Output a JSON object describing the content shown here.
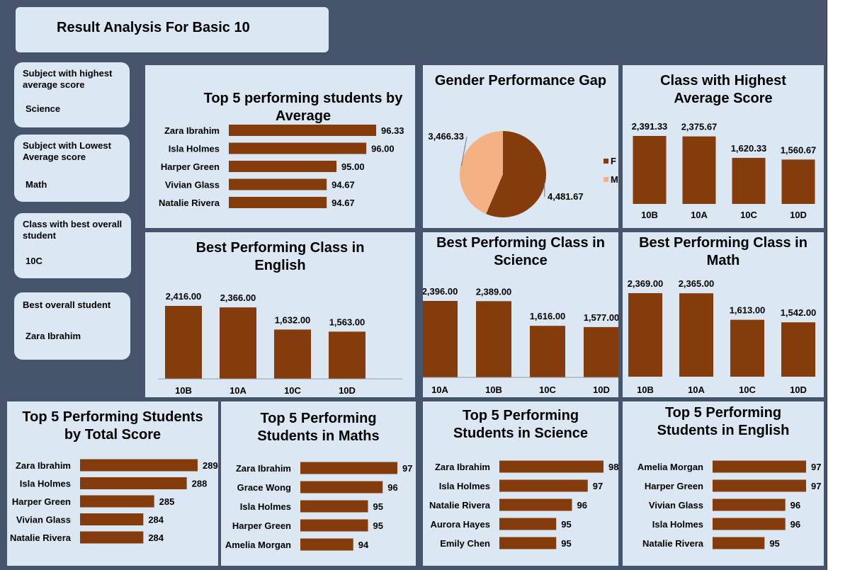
{
  "title": "Result Analysis For Basic 10",
  "colors": {
    "bar": "#843c0c",
    "pie_f": "#843c0c",
    "pie_m": "#f4b183",
    "panel": "#dbe7f3",
    "background": "#46556b"
  },
  "kpis": [
    {
      "label": "Subject with highest average score",
      "value": "Science"
    },
    {
      "label": "Subject with Lowest Average score",
      "value": "Math"
    },
    {
      "label": "Class with best overall student",
      "value": "10C"
    },
    {
      "label": "Best overall student",
      "value": "Zara Ibrahim"
    }
  ],
  "chart_data": [
    {
      "id": "top5_average",
      "type": "bar",
      "orientation": "horizontal",
      "title": "Top 5 performing students by Average",
      "categories": [
        "Zara Ibrahim",
        "Isla Holmes",
        "Harper Green",
        "Vivian Glass",
        "Natalie Rivera"
      ],
      "values": [
        96.33,
        96.0,
        95.0,
        94.67,
        94.67
      ],
      "labels": [
        "96.33",
        "96.00",
        "95.00",
        "94.67",
        "94.67"
      ]
    },
    {
      "id": "gender_gap",
      "type": "pie",
      "title": "Gender Performance Gap",
      "categories": [
        "F",
        "M"
      ],
      "values": [
        4481.67,
        3466.33
      ],
      "labels": [
        "4,481.67",
        "3,466.33"
      ]
    },
    {
      "id": "class_avg",
      "type": "bar",
      "orientation": "vertical",
      "title": "Class with Highest Average Score",
      "categories": [
        "10B",
        "10A",
        "10C",
        "10D"
      ],
      "values": [
        2391.33,
        2375.67,
        1620.33,
        1560.67
      ],
      "labels": [
        "2,391.33",
        "2,375.67",
        "1,620.33",
        "1,560.67"
      ]
    },
    {
      "id": "class_english",
      "type": "bar",
      "orientation": "vertical",
      "title": "Best Performing Class in English",
      "categories": [
        "10B",
        "10A",
        "10C",
        "10D"
      ],
      "values": [
        2416.0,
        2366.0,
        1632.0,
        1563.0
      ],
      "labels": [
        "2,416.00",
        "2,366.00",
        "1,632.00",
        "1,563.00"
      ]
    },
    {
      "id": "class_science",
      "type": "bar",
      "orientation": "vertical",
      "title": "Best Performing Class in Science",
      "categories": [
        "10A",
        "10B",
        "10C",
        "10D"
      ],
      "values": [
        2396.0,
        2389.0,
        1616.0,
        1577.0
      ],
      "labels": [
        "2,396.00",
        "2,389.00",
        "1,616.00",
        "1,577.00"
      ]
    },
    {
      "id": "class_math",
      "type": "bar",
      "orientation": "vertical",
      "title": "Best Performing Class in Math",
      "categories": [
        "10B",
        "10A",
        "10C",
        "10D"
      ],
      "values": [
        2369.0,
        2365.0,
        1613.0,
        1542.0
      ],
      "labels": [
        "2,369.00",
        "2,365.00",
        "1,613.00",
        "1,542.00"
      ]
    },
    {
      "id": "top5_total",
      "type": "bar",
      "orientation": "horizontal",
      "title": "Top 5 Performing Students by Total Score",
      "categories": [
        "Zara Ibrahim",
        "Isla Holmes",
        "Harper Green",
        "Vivian Glass",
        "Natalie Rivera"
      ],
      "values": [
        289,
        288,
        285,
        284,
        284
      ],
      "labels": [
        "289",
        "288",
        "285",
        "284",
        "284"
      ]
    },
    {
      "id": "top5_maths",
      "type": "bar",
      "orientation": "horizontal",
      "title": "Top 5 Performing Students in Maths",
      "categories": [
        "Zara Ibrahim",
        "Grace Wong",
        "Isla Holmes",
        "Harper Green",
        "Amelia Morgan"
      ],
      "values": [
        97,
        96,
        95,
        95,
        94
      ],
      "labels": [
        "97",
        "96",
        "95",
        "95",
        "94"
      ]
    },
    {
      "id": "top5_science",
      "type": "bar",
      "orientation": "horizontal",
      "title": "Top 5 Performing Students in Science",
      "categories": [
        "Zara Ibrahim",
        "Isla Holmes",
        "Natalie Rivera",
        "Aurora Hayes",
        "Emily Chen"
      ],
      "values": [
        98,
        97,
        96,
        95,
        95
      ],
      "labels": [
        "98",
        "97",
        "96",
        "95",
        "95"
      ]
    },
    {
      "id": "top5_english",
      "type": "bar",
      "orientation": "horizontal",
      "title": "Top 5 Performing Students in English",
      "categories": [
        "Amelia Morgan",
        "Harper Green",
        "Vivian Glass",
        "Isla Holmes",
        "Natalie Rivera"
      ],
      "values": [
        97,
        97,
        96,
        96,
        95
      ],
      "labels": [
        "97",
        "97",
        "96",
        "96",
        "95"
      ]
    }
  ]
}
